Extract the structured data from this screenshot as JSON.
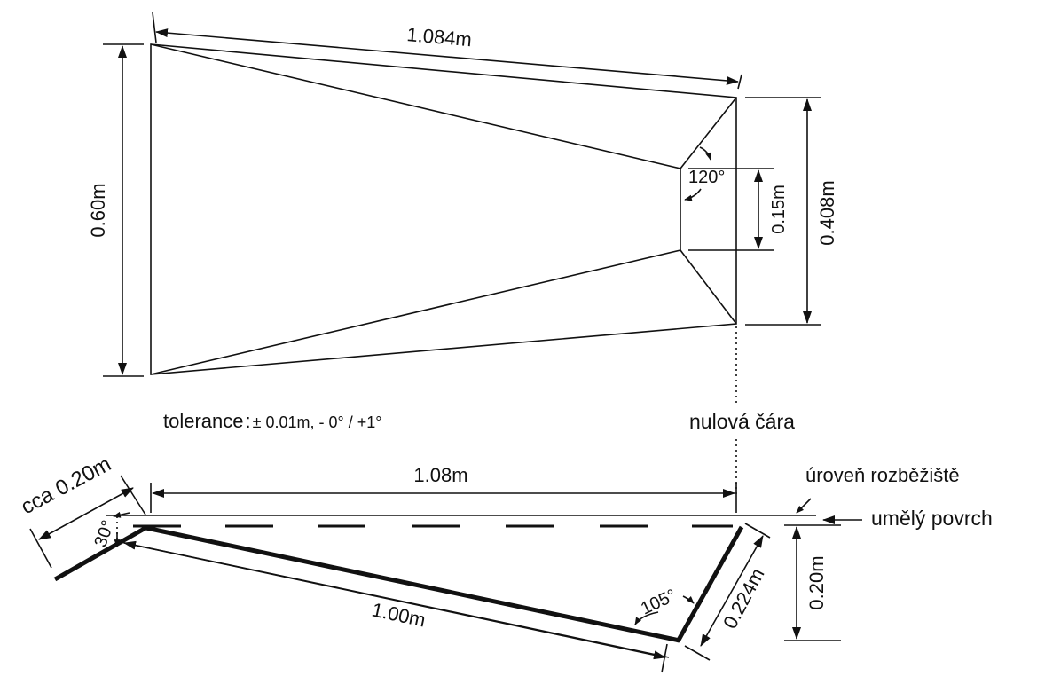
{
  "top_view": {
    "length": "1.084m",
    "back_width": "0.60m",
    "front_width": "0.408m",
    "inner_width": "0.15m",
    "angle": "120°"
  },
  "tolerance": {
    "label": "tolerance",
    "sep": ":",
    "value": "± 0.01m, - 0° / +1°"
  },
  "zero_line": "nulová čára",
  "side_view": {
    "length": "1.08m",
    "bottom_length": "1.00m",
    "front_height": "0.224m",
    "depth": "0.20m",
    "back_length": "cca 0.20m",
    "angle_back": "30°",
    "angle_front": "105°",
    "runway_level": "úroveň rozběžiště",
    "artificial_surface": "umělý povrch"
  },
  "colors": {
    "ink": "#111111",
    "background": "#ffffff"
  }
}
